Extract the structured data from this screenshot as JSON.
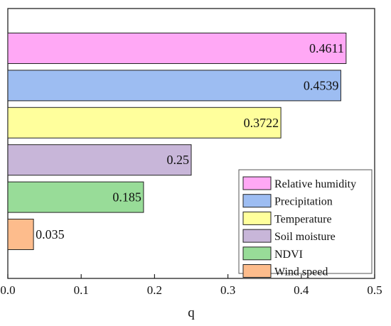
{
  "chart_data": {
    "type": "bar",
    "orientation": "horizontal",
    "title": "",
    "xlabel": "q",
    "ylabel": "",
    "xlim": [
      0.0,
      0.5
    ],
    "xticks": [
      "0.0",
      "0.1",
      "0.2",
      "0.3",
      "0.4",
      "0.5"
    ],
    "grid": false,
    "legend_position": "bottom-right",
    "bars": [
      {
        "name": "Relative humidity",
        "value": 0.4611,
        "label": "0.4611",
        "color": "#ffa8f5"
      },
      {
        "name": "Precipitation",
        "value": 0.4539,
        "label": "0.4539",
        "color": "#9dbdf2"
      },
      {
        "name": "Temperature",
        "value": 0.3722,
        "label": "0.3722",
        "color": "#ffff9c"
      },
      {
        "name": "Soil moisture",
        "value": 0.25,
        "label": "0.25",
        "color": "#c8b6d9"
      },
      {
        "name": "NDVI",
        "value": 0.185,
        "label": "0.185",
        "color": "#98dc98"
      },
      {
        "name": "Wind speed",
        "value": 0.035,
        "label": "0.035",
        "color": "#fdbc8c"
      }
    ]
  }
}
